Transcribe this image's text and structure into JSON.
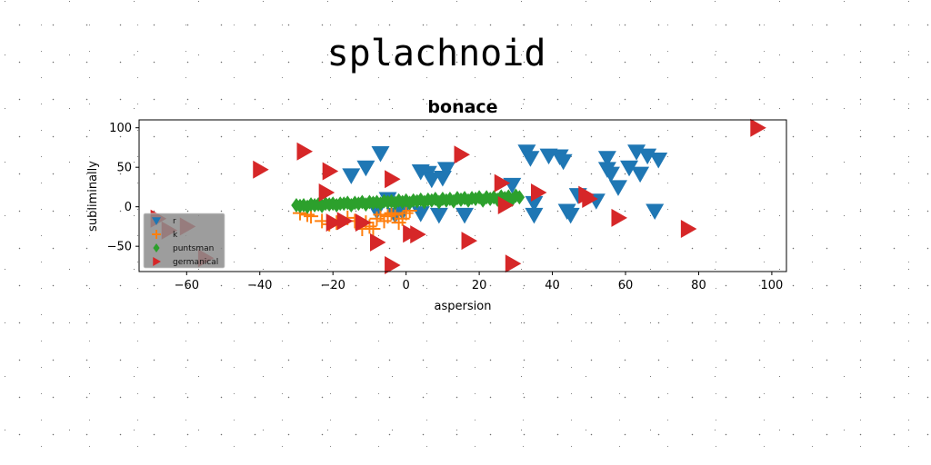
{
  "figure": {
    "title": "splachnoid"
  },
  "chart_data": {
    "type": "scatter",
    "title": "bonace",
    "xlabel": "aspersion",
    "ylabel": "subliminally",
    "xlim": [
      -73,
      104
    ],
    "ylim": [
      -82,
      110
    ],
    "xticks": [
      -60,
      -40,
      -20,
      0,
      20,
      40,
      60,
      80,
      100
    ],
    "yticks": [
      -50,
      0,
      50,
      100
    ],
    "grid": false,
    "legend": {
      "position": "lower-left",
      "entries": [
        "r",
        "k",
        "puntsman",
        "germanical"
      ]
    },
    "series": [
      {
        "name": "r",
        "marker": "triangle-down",
        "color": "#1f77b4",
        "points": [
          [
            -15,
            40
          ],
          [
            -11,
            50
          ],
          [
            -7,
            68
          ],
          [
            -5,
            10
          ],
          [
            4,
            45
          ],
          [
            6,
            43
          ],
          [
            7,
            35
          ],
          [
            10,
            37
          ],
          [
            11,
            48
          ],
          [
            -8,
            -5
          ],
          [
            -3,
            -10
          ],
          [
            -1,
            -6
          ],
          [
            4,
            -8
          ],
          [
            9,
            -10
          ],
          [
            16,
            -10
          ],
          [
            29,
            28
          ],
          [
            33,
            70
          ],
          [
            34,
            62
          ],
          [
            35,
            5
          ],
          [
            35,
            -10
          ],
          [
            39,
            65
          ],
          [
            42,
            64
          ],
          [
            43,
            58
          ],
          [
            44,
            -5
          ],
          [
            45,
            -10
          ],
          [
            47,
            15
          ],
          [
            52,
            8
          ],
          [
            55,
            62
          ],
          [
            55,
            48
          ],
          [
            56,
            42
          ],
          [
            58,
            25
          ],
          [
            61,
            50
          ],
          [
            63,
            70
          ],
          [
            64,
            42
          ],
          [
            66,
            65
          ],
          [
            68,
            -5
          ],
          [
            69,
            60
          ]
        ]
      },
      {
        "name": "k",
        "marker": "plus",
        "color": "#ff7f0e",
        "points": [
          [
            -29,
            -8
          ],
          [
            -27,
            -10
          ],
          [
            -26,
            -12
          ],
          [
            -23,
            -18
          ],
          [
            -21,
            -22
          ],
          [
            -19,
            -20
          ],
          [
            -16,
            -14
          ],
          [
            -14,
            -18
          ],
          [
            -12,
            -28
          ],
          [
            -11,
            -20
          ],
          [
            -10,
            -25
          ],
          [
            -9,
            -28
          ],
          [
            -8,
            -15
          ],
          [
            -7,
            -10
          ],
          [
            -6,
            -18
          ],
          [
            -5,
            -12
          ],
          [
            -4,
            -8
          ],
          [
            -3,
            -10
          ],
          [
            -2,
            -20
          ],
          [
            -1,
            -15
          ],
          [
            0,
            -8
          ],
          [
            1,
            -5
          ]
        ]
      },
      {
        "name": "puntsman",
        "marker": "diamond",
        "color": "#2ca02c",
        "points": [
          [
            -30,
            2
          ],
          [
            -28,
            2
          ],
          [
            -26,
            3
          ],
          [
            -24,
            3
          ],
          [
            -22,
            4
          ],
          [
            -20,
            4
          ],
          [
            -18,
            4
          ],
          [
            -16,
            5
          ],
          [
            -14,
            5
          ],
          [
            -12,
            6
          ],
          [
            -10,
            6
          ],
          [
            -8,
            6
          ],
          [
            -6,
            7
          ],
          [
            -4,
            7
          ],
          [
            -2,
            8
          ],
          [
            0,
            8
          ],
          [
            2,
            8
          ],
          [
            4,
            9
          ],
          [
            6,
            9
          ],
          [
            8,
            10
          ],
          [
            10,
            10
          ],
          [
            12,
            10
          ],
          [
            14,
            11
          ],
          [
            16,
            11
          ],
          [
            18,
            11
          ],
          [
            20,
            12
          ],
          [
            22,
            12
          ],
          [
            24,
            12
          ],
          [
            26,
            13
          ],
          [
            28,
            13
          ],
          [
            30,
            14
          ],
          [
            -29,
            1
          ],
          [
            -25,
            2
          ],
          [
            -21,
            3
          ],
          [
            -17,
            4
          ],
          [
            -13,
            4
          ],
          [
            -9,
            5
          ],
          [
            -5,
            6
          ],
          [
            -1,
            6
          ],
          [
            3,
            7
          ],
          [
            7,
            8
          ],
          [
            11,
            8
          ],
          [
            15,
            9
          ],
          [
            19,
            10
          ],
          [
            23,
            10
          ],
          [
            27,
            11
          ],
          [
            31,
            12
          ],
          [
            -27,
            0
          ],
          [
            -23,
            1
          ],
          [
            -19,
            2
          ],
          [
            -15,
            2
          ],
          [
            -11,
            3
          ],
          [
            -7,
            4
          ],
          [
            -3,
            5
          ],
          [
            1,
            5
          ],
          [
            5,
            6
          ],
          [
            9,
            6
          ],
          [
            13,
            7
          ],
          [
            17,
            8
          ],
          [
            21,
            8
          ],
          [
            25,
            9
          ],
          [
            29,
            9
          ]
        ]
      },
      {
        "name": "germanical",
        "marker": "triangle-right",
        "color": "#d62728",
        "points": [
          [
            -68,
            -15
          ],
          [
            -65,
            -30
          ],
          [
            -60,
            -25
          ],
          [
            -55,
            -65
          ],
          [
            -40,
            47
          ],
          [
            -28,
            70
          ],
          [
            -21,
            45
          ],
          [
            -22,
            18
          ],
          [
            -20,
            -20
          ],
          [
            -17,
            -18
          ],
          [
            -12,
            -20
          ],
          [
            -8,
            -45
          ],
          [
            -4,
            35
          ],
          [
            -4,
            -74
          ],
          [
            1,
            -34
          ],
          [
            3,
            -35
          ],
          [
            15,
            66
          ],
          [
            17,
            -43
          ],
          [
            26,
            30
          ],
          [
            27,
            2
          ],
          [
            29,
            -72
          ],
          [
            36,
            18
          ],
          [
            49,
            15
          ],
          [
            50,
            10
          ],
          [
            58,
            -14
          ],
          [
            77,
            -28
          ],
          [
            96,
            100
          ]
        ]
      }
    ]
  }
}
